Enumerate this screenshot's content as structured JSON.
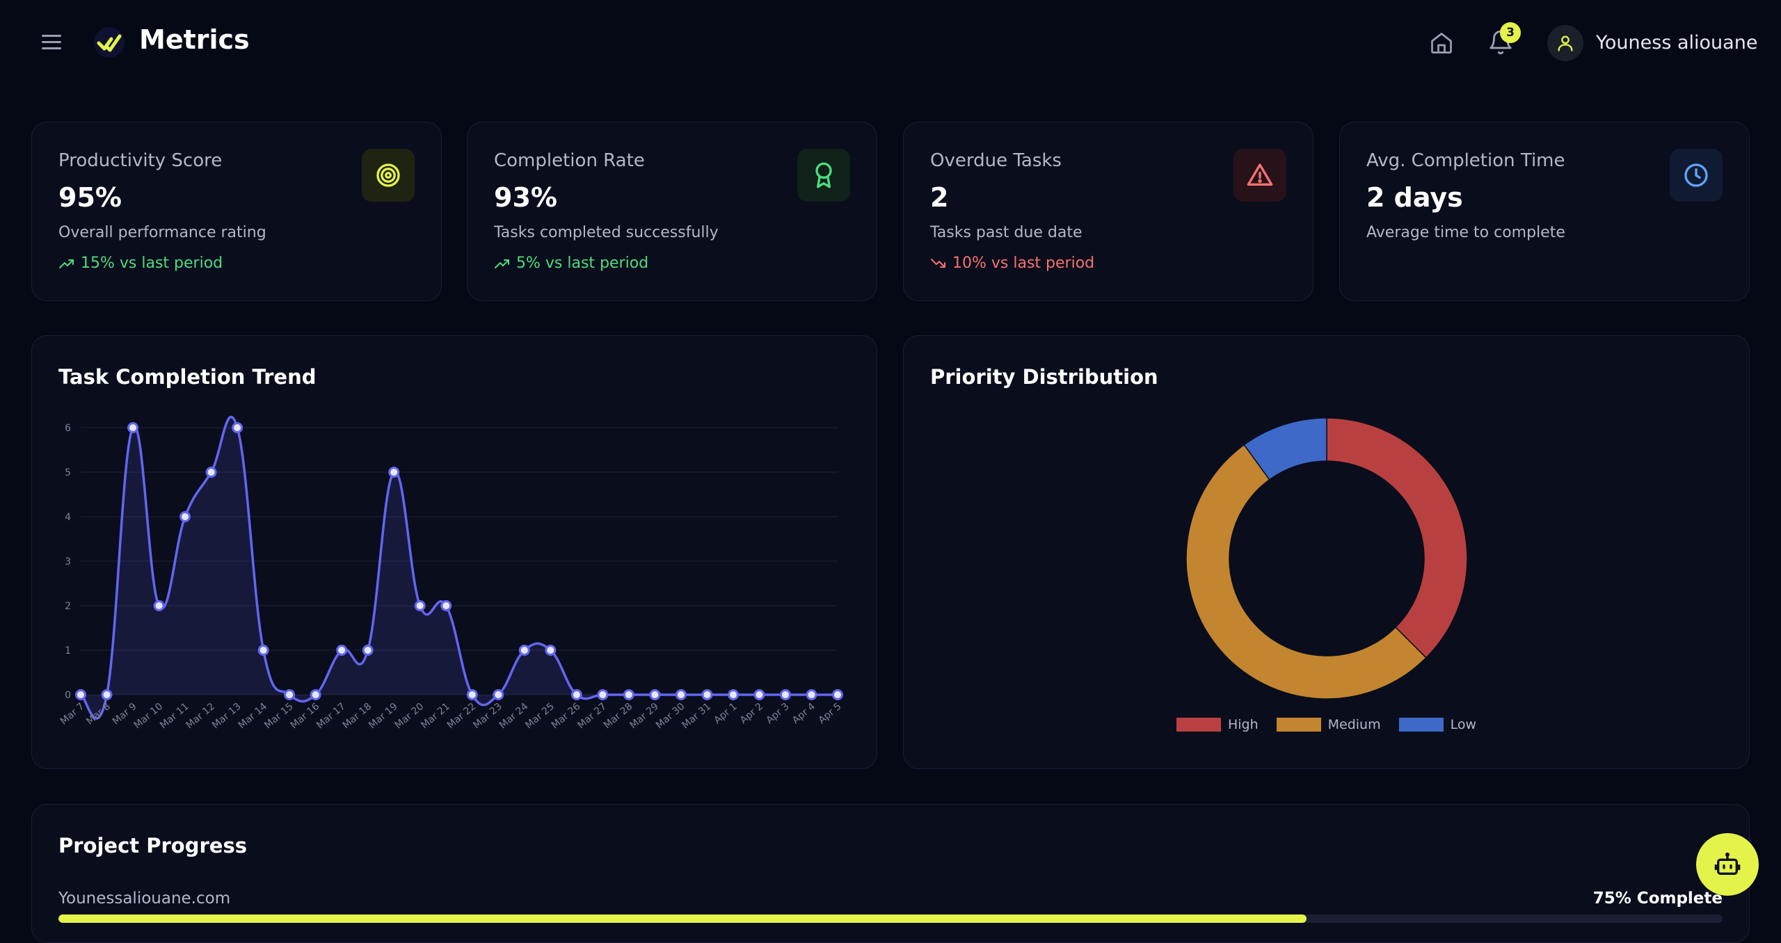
{
  "header": {
    "app_title": "Metrics",
    "notification_count": "3",
    "user_name": "Youness aliouane"
  },
  "stats": [
    {
      "title": "Productivity Score",
      "value": "95%",
      "subtitle": "Overall performance rating",
      "trend": "15% vs last period",
      "trend_direction": "up",
      "icon": "target-icon",
      "accent": "#e4f34a"
    },
    {
      "title": "Completion Rate",
      "value": "93%",
      "subtitle": "Tasks completed successfully",
      "trend": "5% vs last period",
      "trend_direction": "up",
      "icon": "award-icon",
      "accent": "#4ade80"
    },
    {
      "title": "Overdue Tasks",
      "value": "2",
      "subtitle": "Tasks past due date",
      "trend": "10% vs last period",
      "trend_direction": "down",
      "icon": "alert-triangle-icon",
      "accent": "#f87171"
    },
    {
      "title": "Avg. Completion Time",
      "value": "2 days",
      "subtitle": "Average time to complete",
      "trend": "",
      "icon": "clock-icon",
      "accent": "#60a5fa"
    }
  ],
  "colors": {
    "trend_up": "#4ade80",
    "trend_down": "#f87171",
    "line": "#6366f1",
    "brand": "#e4f34a"
  },
  "trend_panel": {
    "title": "Task Completion Trend"
  },
  "priority_panel": {
    "title": "Priority Distribution"
  },
  "project_panel": {
    "title": "Project Progress",
    "project_name": "Younessaliouane.com",
    "progress_label": "75% Complete",
    "progress_value": 75
  },
  "chart_data": [
    {
      "type": "area",
      "title": "Task Completion Trend",
      "categories": [
        "Mar 7",
        "Mar 8",
        "Mar 9",
        "Mar 10",
        "Mar 11",
        "Mar 12",
        "Mar 13",
        "Mar 14",
        "Mar 15",
        "Mar 16",
        "Mar 17",
        "Mar 18",
        "Mar 19",
        "Mar 20",
        "Mar 21",
        "Mar 22",
        "Mar 23",
        "Mar 24",
        "Mar 25",
        "Mar 26",
        "Mar 27",
        "Mar 28",
        "Mar 29",
        "Mar 30",
        "Mar 31",
        "Apr 1",
        "Apr 2",
        "Apr 3",
        "Apr 4",
        "Apr 5"
      ],
      "values": [
        0,
        0,
        6,
        2,
        4,
        5,
        6,
        1,
        0,
        0,
        1,
        1,
        5,
        2,
        2,
        0,
        0,
        1,
        1,
        0,
        0,
        0,
        0,
        0,
        0,
        0,
        0,
        0,
        0,
        0
      ],
      "yticks": [
        "0",
        "1",
        "2",
        "3",
        "4",
        "5",
        "6"
      ],
      "ylim": [
        0,
        6
      ],
      "grid": true,
      "line_color": "#6366f1"
    },
    {
      "type": "pie",
      "title": "Priority Distribution",
      "labels": [
        "High",
        "Medium",
        "Low"
      ],
      "values": [
        37.5,
        52.5,
        10
      ],
      "colors": [
        "#b94040",
        "#c38530",
        "#3e69c8"
      ],
      "donut": true,
      "legend": "bottom"
    }
  ]
}
